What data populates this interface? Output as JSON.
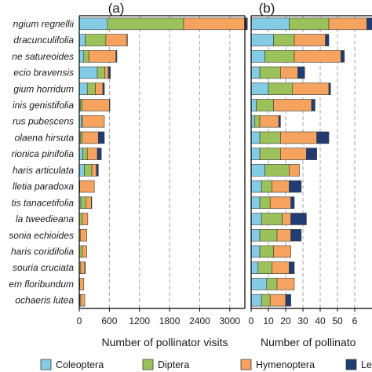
{
  "chart_data": [
    {
      "panel_label": "(a)",
      "type": "bar",
      "orientation": "horizontal",
      "stacked": true,
      "categories": [
        "ngium regnellii",
        "dracunculifolia",
        "ne satureoides",
        "ecio bravensis",
        "gium horridum",
        "inis genistifolia",
        "rus pubescens",
        "olaena hirsuta",
        "rionica pinifolia",
        "haris articulata",
        "lletia paradoxa",
        "tis tanacetifolia",
        "la tweedieana",
        "sonia echioides",
        "haris coridifolia",
        "souria cruciata",
        "em floribundum",
        "ochaeris lutea"
      ],
      "series": [
        {
          "name": "Coleoptera",
          "values": [
            560,
            120,
            90,
            360,
            160,
            20,
            50,
            20,
            70,
            100,
            0,
            30,
            0,
            0,
            0,
            0,
            0,
            10
          ]
        },
        {
          "name": "Diptera",
          "values": [
            1520,
            410,
            100,
            150,
            160,
            40,
            10,
            40,
            90,
            150,
            10,
            100,
            60,
            20,
            60,
            30,
            10,
            20
          ]
        },
        {
          "name": "Hymenoptera",
          "values": [
            1230,
            420,
            540,
            70,
            150,
            540,
            440,
            320,
            200,
            90,
            290,
            110,
            110,
            130,
            90,
            80,
            80,
            80
          ]
        },
        {
          "name": "Lepidoptera",
          "values": [
            40,
            10,
            20,
            40,
            30,
            10,
            0,
            120,
            80,
            40,
            0,
            10,
            0,
            0,
            0,
            10,
            0,
            0
          ]
        }
      ],
      "xlim": [
        0,
        3300
      ],
      "xticks": [
        "0",
        "600",
        "1200",
        "1800",
        "2400",
        "3000"
      ],
      "xlabel": "Number of pollinator visits",
      "grid": "vertical dashed"
    },
    {
      "panel_label": "(b)",
      "type": "bar",
      "orientation": "horizontal",
      "stacked": true,
      "categories": [
        "ngium regnellii",
        "dracunculifolia",
        "ne satureoides",
        "ecio bravensis",
        "gium horridum",
        "inis genistifolia",
        "rus pubescens",
        "olaena hirsuta",
        "rionica pinifolia",
        "haris articulata",
        "lletia paradoxa",
        "tis tanacetifolia",
        "la tweedieana",
        "sonia echioides",
        "haris coridifolia",
        "souria cruciata",
        "em floribundum",
        "ochaeris lutea"
      ],
      "series": [
        {
          "name": "Coleoptera",
          "values": [
            22,
            13,
            8,
            5,
            10,
            3,
            2,
            5,
            5,
            8,
            6,
            5,
            6,
            5,
            5,
            4,
            9,
            6
          ]
        },
        {
          "name": "Diptera",
          "values": [
            23,
            12,
            17,
            12,
            14,
            10,
            3,
            12,
            12,
            14,
            6,
            6,
            12,
            10,
            8,
            8,
            6,
            5
          ]
        },
        {
          "name": "Hymenoptera",
          "values": [
            22,
            18,
            27,
            10,
            21,
            22,
            11,
            21,
            15,
            6,
            10,
            12,
            5,
            8,
            10,
            10,
            10,
            9
          ]
        },
        {
          "name": "Lepidoptera",
          "values": [
            6,
            2,
            2,
            4,
            1,
            2,
            1,
            7,
            6,
            0,
            7,
            2,
            9,
            6,
            0,
            3,
            0,
            3
          ]
        }
      ],
      "xlim": [
        0,
        70
      ],
      "xticks": [
        "0",
        "10",
        "20",
        "30",
        "40",
        "50",
        "6"
      ],
      "xlabel": "Number of pollinato",
      "grid": "vertical dashed"
    }
  ],
  "legend": [
    {
      "label": "Coleoptera",
      "color": "#84cce6"
    },
    {
      "label": "Diptera",
      "color": "#9bc25a"
    },
    {
      "label": "Hymenoptera",
      "color": "#f5a35e"
    },
    {
      "label": "Lepidoptera",
      "color": "#1f3c73"
    }
  ],
  "colors": {
    "bar_edge": "#3a3a3a",
    "axis": "#000000",
    "grid": "#9a9a9a"
  }
}
